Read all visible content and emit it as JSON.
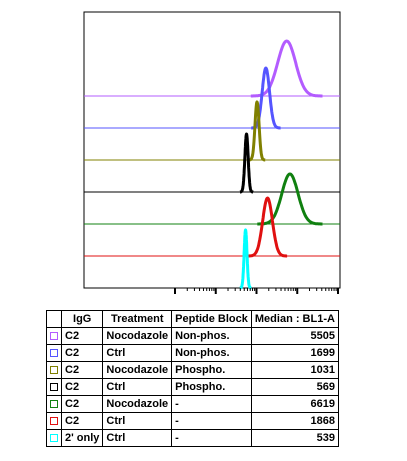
{
  "chart_data": {
    "type": "histogram-overlay",
    "x_scale": "log",
    "xlim": [
      10,
      100000
    ],
    "grid": false,
    "legend_placement": "below",
    "columns": [
      "IgG",
      "Treatment",
      "Peptide Block",
      "Median : BL1-A"
    ],
    "series": [
      {
        "color": "#b35cff",
        "values": [
          "C2",
          "Nocodazole",
          "Non-phos.",
          "5505"
        ],
        "median": 5505,
        "spread": 0.22
      },
      {
        "color": "#5555ff",
        "values": [
          "C2",
          "Ctrl",
          "Non-phos.",
          "1699"
        ],
        "median": 1699,
        "spread": 0.09
      },
      {
        "color": "#808000",
        "values": [
          "C2",
          "Nocodazole",
          "Phospho.",
          "1031"
        ],
        "median": 1031,
        "spread": 0.05
      },
      {
        "color": "#000000",
        "values": [
          "C2",
          "Ctrl",
          "Phospho.",
          "569"
        ],
        "median": 569,
        "spread": 0.04
      },
      {
        "color": "#108010",
        "values": [
          "C2",
          "Nocodazole",
          "-",
          "6619"
        ],
        "median": 6619,
        "spread": 0.2
      },
      {
        "color": "#e01010",
        "values": [
          "C2",
          "Ctrl",
          "-",
          "1868"
        ],
        "median": 1868,
        "spread": 0.12
      },
      {
        "color": "#00ffff",
        "values": [
          "2' only",
          "Ctrl",
          "-",
          "539"
        ],
        "median": 539,
        "spread": 0.035
      }
    ]
  }
}
